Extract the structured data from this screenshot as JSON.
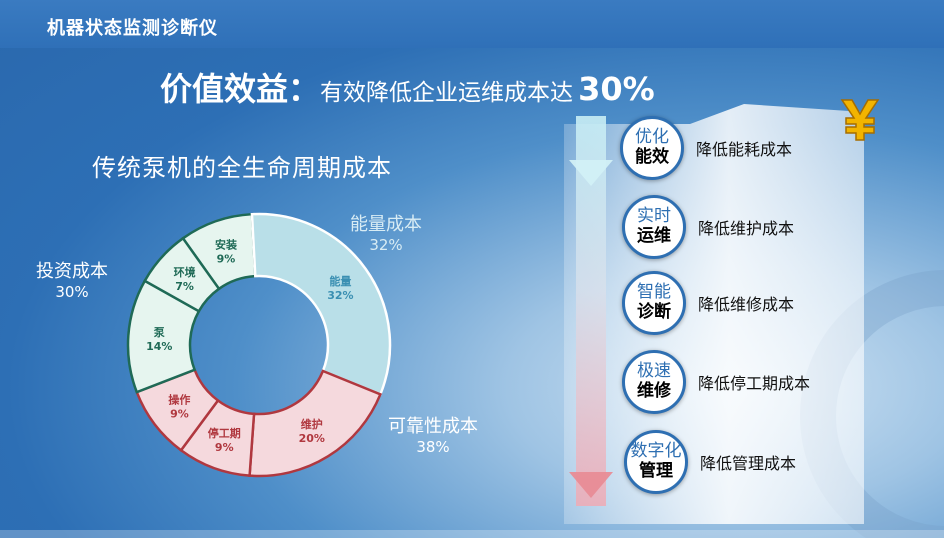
{
  "app": {
    "title": "机器状态监测诊断仪"
  },
  "headline": {
    "main": "价值效益：",
    "sub": "有效降低企业运维成本达",
    "pct": "30%"
  },
  "chart_title": "传统泵机的全生命周期成本",
  "groups": [
    {
      "name": "投资成本",
      "pct": "30%",
      "color": "#ffffff"
    },
    {
      "name": "能量成本",
      "pct": "32%",
      "color": "#d8ecf4"
    },
    {
      "name": "可靠性成本",
      "pct": "38%",
      "color": "#ffffff"
    }
  ],
  "chart_data": {
    "type": "pie",
    "donut": true,
    "series": [
      {
        "name": "安装",
        "label": "安装",
        "value": 9,
        "display": "9%",
        "fill": "#e6f5ef",
        "stroke": "#1f6a56",
        "text": "#1f6a56"
      },
      {
        "name": "能量",
        "label": "能量",
        "value": 32,
        "display": "32%",
        "fill": "#b9dfe8",
        "stroke": "#ffffff",
        "text": "#3a8fb2"
      },
      {
        "name": "维护",
        "label": "维护",
        "value": 20,
        "display": "20%",
        "fill": "#f5d9dd",
        "stroke": "#b0383f",
        "text": "#b0383f"
      },
      {
        "name": "停工期",
        "label": "停工期",
        "value": 9,
        "display": "9%",
        "fill": "#f5d9dd",
        "stroke": "#b0383f",
        "text": "#b0383f"
      },
      {
        "name": "操作",
        "label": "操作",
        "value": 9,
        "display": "9%",
        "fill": "#f5d9dd",
        "stroke": "#b0383f",
        "text": "#b0383f"
      },
      {
        "name": "泵",
        "label": "泵",
        "value": 14,
        "display": "14%",
        "fill": "#e6f5ef",
        "stroke": "#1f6a56",
        "text": "#1f6a56"
      },
      {
        "name": "环境",
        "label": "环境",
        "value": 7,
        "display": "7%",
        "fill": "#e6f5ef",
        "stroke": "#1f6a56",
        "text": "#1f6a56"
      }
    ]
  },
  "benefits": [
    {
      "top": "优化",
      "bottom": "能效",
      "label": "降低能耗成本"
    },
    {
      "top": "实时",
      "bottom": "运维",
      "label": "降低维护成本"
    },
    {
      "top": "智能",
      "bottom": "诊断",
      "label": "降低维修成本"
    },
    {
      "top": "极速",
      "bottom": "维修",
      "label": "降低停工期成本"
    },
    {
      "top": "数字化",
      "bottom": "管理",
      "label": "降低管理成本"
    }
  ],
  "icons": {
    "yen": "yen-icon",
    "arrow": "down-arrow-icon"
  },
  "colors": {
    "accent": "#2e6fb2",
    "gold": "#f2b400"
  }
}
